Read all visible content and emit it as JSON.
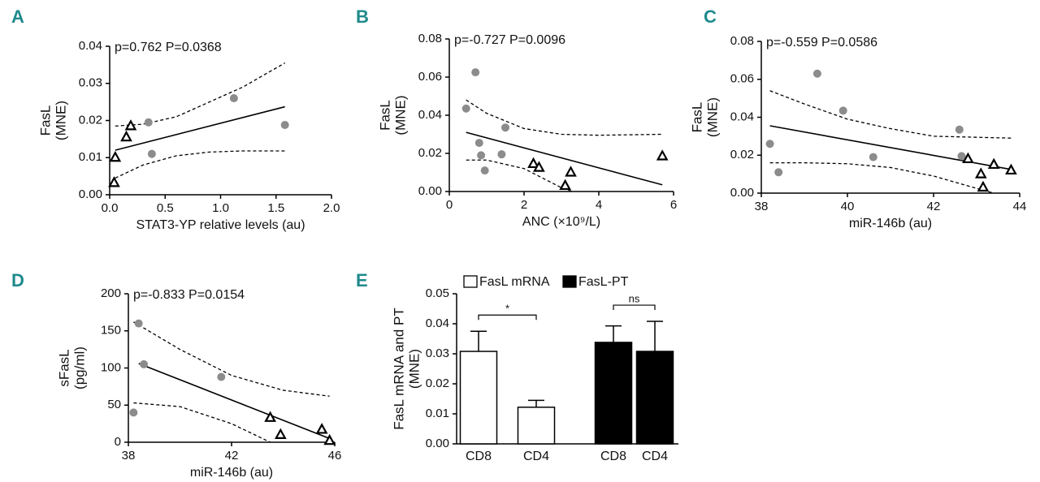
{
  "chart_data": [
    {
      "type": "scatter",
      "panel": "A",
      "annotation": "p=0.762 P=0.0368",
      "xlabel": "STAT3-YP relative levels (au)",
      "ylabel": [
        "FasL",
        "(MNE)"
      ],
      "xlim": [
        0,
        2
      ],
      "ylim": [
        0,
        0.04
      ],
      "xticks": [
        {
          "value": 0,
          "label": "0.0"
        },
        {
          "value": 0.5,
          "label": "0.5"
        },
        {
          "value": 1,
          "label": "1.0"
        },
        {
          "value": 1.5,
          "label": "1.5"
        },
        {
          "value": 2,
          "label": "2.0"
        }
      ],
      "yticks": [
        {
          "value": 0,
          "label": "0.00"
        },
        {
          "value": 0.01,
          "label": "0.01"
        },
        {
          "value": 0.02,
          "label": "0.02"
        },
        {
          "value": 0.03,
          "label": "0.03"
        },
        {
          "value": 0.04,
          "label": "0.04"
        }
      ],
      "series": [
        {
          "marker": "circle",
          "color": "#8c8c8c",
          "x": [
            0.35,
            0.38,
            1.12,
            1.58
          ],
          "values": [
            0.0195,
            0.011,
            0.026,
            0.0188
          ]
        },
        {
          "marker": "triangle",
          "color": "#000000",
          "x": [
            0.04,
            0.05,
            0.15,
            0.19
          ],
          "values": [
            0.0032,
            0.01,
            0.0155,
            0.0185
          ]
        }
      ],
      "fit": {
        "x": [
          0.05,
          1.58
        ],
        "values": [
          0.012,
          0.0237
        ]
      },
      "bands": [
        {
          "x": [
            0.05,
            0.3,
            0.6,
            0.9,
            1.2,
            1.58
          ],
          "values": [
            0.0185,
            0.019,
            0.021,
            0.025,
            0.029,
            0.0355
          ]
        },
        {
          "x": [
            0.05,
            0.3,
            0.6,
            0.9,
            1.2,
            1.58
          ],
          "values": [
            0.0045,
            0.008,
            0.0105,
            0.0115,
            0.0118,
            0.0118
          ]
        }
      ]
    },
    {
      "type": "scatter",
      "panel": "B",
      "annotation": "p=-0.727 P=0.0096",
      "xlabel": "ANC (×10⁹/L)",
      "ylabel": [
        "FasL",
        "(MNE)"
      ],
      "xlim": [
        0,
        6
      ],
      "ylim": [
        0,
        0.08
      ],
      "xticks": [
        0,
        2,
        4,
        6
      ],
      "yticks": [
        {
          "value": 0,
          "label": "0.00"
        },
        {
          "value": 0.02,
          "label": "0.02"
        },
        {
          "value": 0.04,
          "label": "0.04"
        },
        {
          "value": 0.06,
          "label": "0.06"
        },
        {
          "value": 0.08,
          "label": "0.08"
        }
      ],
      "series": [
        {
          "marker": "circle",
          "color": "#8c8c8c",
          "x": [
            0.45,
            0.7,
            0.8,
            0.85,
            0.95,
            1.4,
            1.5
          ],
          "values": [
            0.0435,
            0.0625,
            0.0255,
            0.019,
            0.011,
            0.0195,
            0.0335
          ]
        },
        {
          "marker": "triangle",
          "color": "#000000",
          "x": [
            2.25,
            2.4,
            3.1,
            3.25,
            5.7
          ],
          "values": [
            0.0145,
            0.0125,
            0.003,
            0.01,
            0.0185
          ]
        }
      ],
      "fit": {
        "x": [
          0.45,
          5.7
        ],
        "values": [
          0.031,
          0.0035
        ]
      },
      "bands": [
        {
          "x": [
            0.45,
            1,
            2,
            3,
            4,
            5.7
          ],
          "values": [
            0.048,
            0.041,
            0.033,
            0.03,
            0.0295,
            0.03
          ]
        },
        {
          "x": [
            0.45,
            1,
            2,
            2.5,
            3,
            3.3
          ],
          "values": [
            0.0165,
            0.0165,
            0.012,
            0.007,
            0.002,
            0
          ]
        }
      ]
    },
    {
      "type": "scatter",
      "panel": "C",
      "annotation": "p=-0.559 P=0.0586",
      "xlabel": "miR-146b (au)",
      "ylabel": [
        "FasL",
        "(MNE)"
      ],
      "xlim": [
        38,
        44
      ],
      "ylim": [
        0,
        0.08
      ],
      "xticks": [
        38,
        40,
        42,
        44
      ],
      "yticks": [
        {
          "value": 0,
          "label": "0.00"
        },
        {
          "value": 0.02,
          "label": "0.02"
        },
        {
          "value": 0.04,
          "label": "0.04"
        },
        {
          "value": 0.06,
          "label": "0.06"
        },
        {
          "value": 0.08,
          "label": "0.08"
        }
      ],
      "series": [
        {
          "marker": "circle",
          "color": "#8c8c8c",
          "x": [
            38.2,
            38.4,
            39.3,
            39.9,
            40.6,
            42.6,
            42.65
          ],
          "values": [
            0.026,
            0.011,
            0.063,
            0.0435,
            0.019,
            0.0335,
            0.0195
          ]
        },
        {
          "marker": "triangle",
          "color": "#000000",
          "x": [
            42.8,
            43.1,
            43.15,
            43.4,
            43.8
          ],
          "values": [
            0.018,
            0.01,
            0.003,
            0.015,
            0.012
          ]
        }
      ],
      "fit": {
        "x": [
          38.2,
          43.8
        ],
        "values": [
          0.0355,
          0.0125
        ]
      },
      "bands": [
        {
          "x": [
            38.2,
            39,
            40,
            41,
            42,
            43.8
          ],
          "values": [
            0.054,
            0.047,
            0.039,
            0.034,
            0.03,
            0.029
          ]
        },
        {
          "x": [
            38.2,
            39,
            40,
            41,
            42,
            43,
            43.4
          ],
          "values": [
            0.016,
            0.016,
            0.0155,
            0.0135,
            0.009,
            0.0025,
            0
          ]
        }
      ]
    },
    {
      "type": "scatter",
      "panel": "D",
      "annotation": "p=-0.833 P=0.0154",
      "xlabel": "miR-146b (au)",
      "ylabel": [
        "sFasL",
        "(pg/ml)"
      ],
      "xlim": [
        38,
        46
      ],
      "ylim": [
        0,
        200
      ],
      "xticks": [
        38,
        42,
        46
      ],
      "yticks": [
        0,
        50,
        100,
        150,
        200
      ],
      "series": [
        {
          "marker": "circle",
          "color": "#8c8c8c",
          "x": [
            38.2,
            38.4,
            38.6,
            41.6
          ],
          "values": [
            40,
            160,
            105,
            88
          ]
        },
        {
          "marker": "triangle",
          "color": "#000000",
          "x": [
            43.5,
            43.9,
            45.5,
            45.8
          ],
          "values": [
            33,
            10,
            17,
            2
          ]
        }
      ],
      "fit": {
        "x": [
          38.4,
          45.8
        ],
        "values": [
          106,
          5
        ]
      },
      "bands": [
        {
          "x": [
            38.2,
            40,
            42,
            44,
            45.8
          ],
          "values": [
            162,
            125,
            90,
            70,
            62
          ]
        },
        {
          "x": [
            38.2,
            40,
            42,
            43.5
          ],
          "values": [
            53,
            48,
            25,
            0
          ]
        }
      ]
    },
    {
      "type": "bar",
      "panel": "E",
      "ylabel": [
        "FasL mRNA and PT",
        "(MNE)"
      ],
      "ylim": [
        0,
        0.05
      ],
      "yticks": [
        {
          "value": 0,
          "label": "0.00"
        },
        {
          "value": 0.01,
          "label": "0.01"
        },
        {
          "value": 0.02,
          "label": "0.02"
        },
        {
          "value": 0.03,
          "label": "0.03"
        },
        {
          "value": 0.04,
          "label": "0.04"
        },
        {
          "value": 0.05,
          "label": "0.05"
        }
      ],
      "categories": [
        "CD8",
        "CD4",
        "CD8",
        "CD4"
      ],
      "legend": "top",
      "series": [
        {
          "name": "FasL mRNA",
          "color": "#ffffff",
          "values": [
            0.0308,
            0.0122,
            null,
            null
          ],
          "errors": [
            0.0067,
            0.0023,
            null,
            null
          ]
        },
        {
          "name": "FasL-PT",
          "color": "#000000",
          "values": [
            null,
            null,
            0.0338,
            0.0308
          ],
          "errors": [
            null,
            null,
            0.0055,
            0.01
          ]
        }
      ],
      "significance": [
        "*",
        "ns"
      ]
    }
  ]
}
